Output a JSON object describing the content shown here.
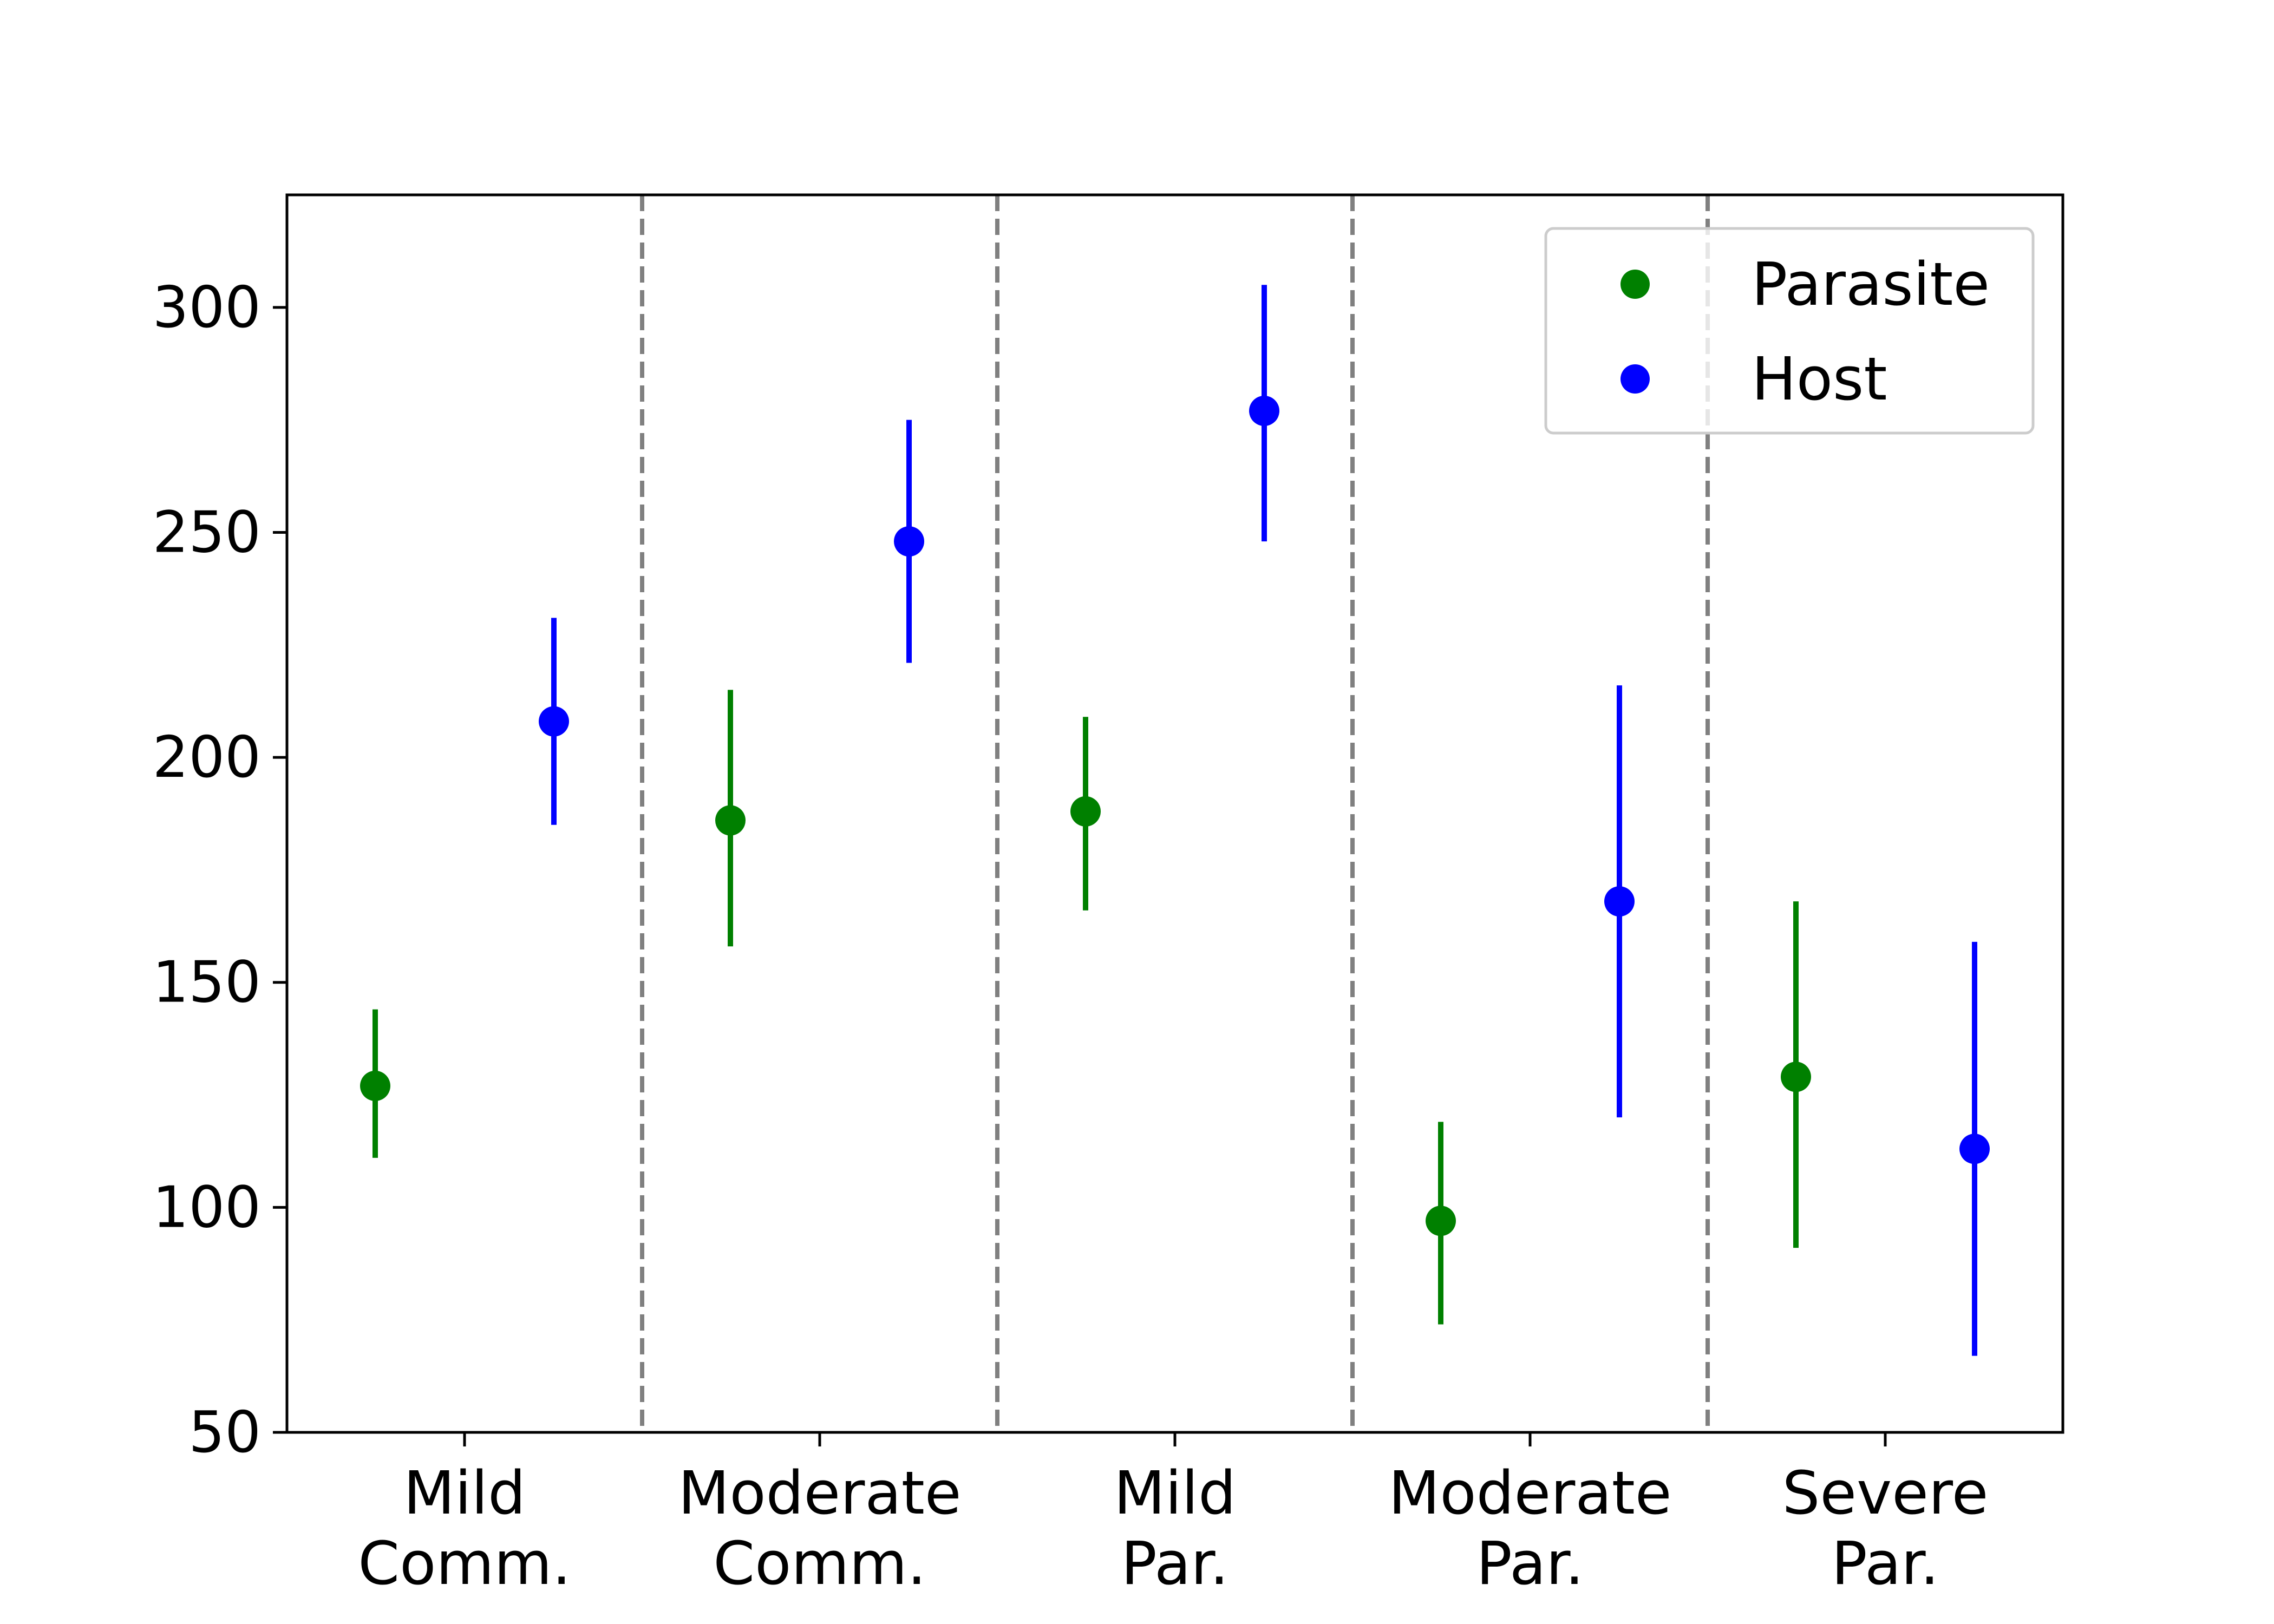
{
  "chart_data": {
    "type": "scatter",
    "title": "",
    "xlabel": "",
    "ylabel": "",
    "categories": [
      [
        "Mild",
        "Comm."
      ],
      [
        "Moderate",
        "Comm."
      ],
      [
        "Mild",
        "Par."
      ],
      [
        "Moderate",
        "Par."
      ],
      [
        "Severe",
        "Par."
      ]
    ],
    "ylim": [
      50,
      325
    ],
    "yticks": [
      50,
      100,
      150,
      200,
      250,
      300
    ],
    "series": [
      {
        "name": "Parasite",
        "color": "#008000",
        "values": [
          127,
          186,
          188,
          97,
          129
        ],
        "err_low": [
          111,
          158,
          166,
          74,
          91
        ],
        "err_high": [
          144,
          215,
          209,
          119,
          168
        ]
      },
      {
        "name": "Host",
        "color": "#0000ff",
        "values": [
          208,
          248,
          277,
          168,
          113
        ],
        "err_low": [
          185,
          221,
          248,
          120,
          67
        ],
        "err_high": [
          231,
          275,
          305,
          216,
          159
        ]
      }
    ],
    "separator_color": "#808080",
    "legend_position": "top-right",
    "grid": false
  }
}
